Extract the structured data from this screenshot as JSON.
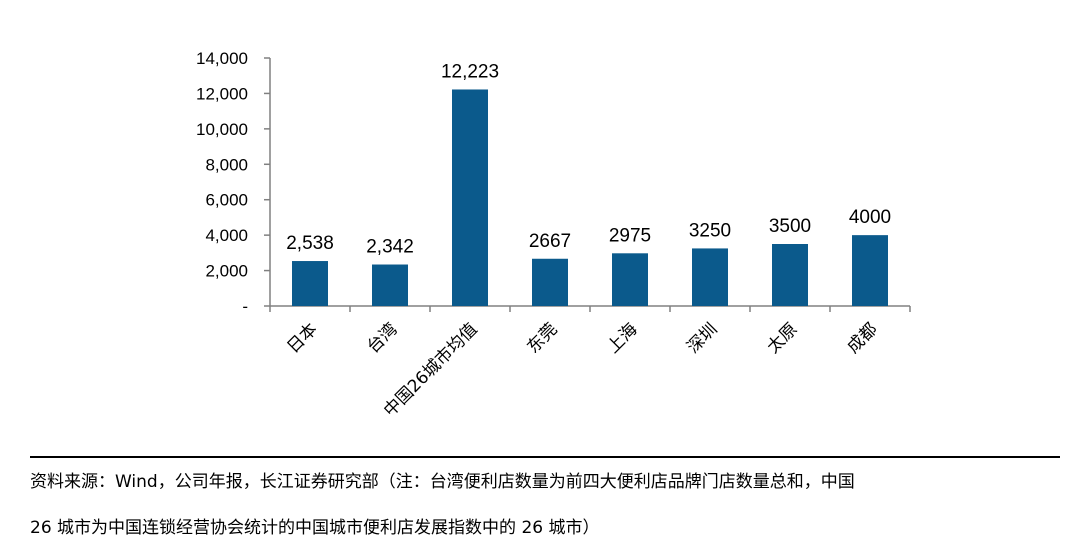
{
  "chart_data": {
    "type": "bar",
    "categories": [
      "日本",
      "台湾",
      "中国26城市均值",
      "东莞",
      "上海",
      "深圳",
      "太原",
      "成都"
    ],
    "values": [
      2538,
      2342,
      12223,
      2667,
      2975,
      3250,
      3500,
      4000
    ],
    "value_labels": [
      "2,538",
      "2,342",
      "12,223",
      "2667",
      "2975",
      "3250",
      "3500",
      "4000"
    ],
    "y_tick_labels": [
      "-",
      "2,000",
      "4,000",
      "6,000",
      "8,000",
      "10,000",
      "12,000",
      "14,000"
    ],
    "y_ticks": [
      0,
      2000,
      4000,
      6000,
      8000,
      10000,
      12000,
      14000
    ],
    "ylim": [
      0,
      14000
    ],
    "bar_color": "#0b5a8c",
    "grid": false,
    "legend": "none"
  },
  "source": {
    "line1": "资料来源：Wind，公司年报，长江证券研究部（注：台湾便利店数量为前四大便利店品牌门店数量总和，中国",
    "line2": "26 城市为中国连锁经营协会统计的中国城市便利店发展指数中的 26 城市）"
  }
}
